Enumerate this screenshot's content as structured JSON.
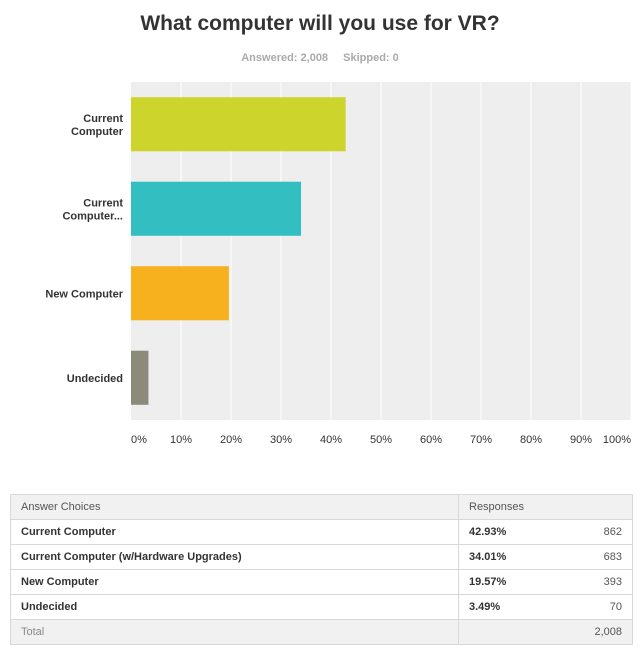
{
  "title": "What computer will you use for VR?",
  "answered": "Answered: 2,008",
  "skipped": "Skipped: 0",
  "colors": {
    "plot_background": "#eeeeee",
    "gridline": "#ffffff",
    "bars": [
      "#cdd42b",
      "#33bfc2",
      "#f7b11e",
      "#8c8b7a"
    ]
  },
  "chart_data": {
    "type": "bar",
    "orientation": "horizontal",
    "categories": [
      "Current Computer",
      "Current Computer...",
      "New Computer",
      "Undecided"
    ],
    "values": [
      42.93,
      34.01,
      19.57,
      3.49
    ],
    "xlim": [
      0,
      100
    ],
    "x_ticks": [
      "0%",
      "10%",
      "20%",
      "30%",
      "40%",
      "50%",
      "60%",
      "70%",
      "80%",
      "90%",
      "100%"
    ],
    "grid": true,
    "legend": "none"
  },
  "table": {
    "header": {
      "choice": "Answer Choices",
      "responses": "Responses"
    },
    "rows": [
      {
        "choice": "Current Computer",
        "percent": "42.93%",
        "count": "862"
      },
      {
        "choice": "Current Computer (w/Hardware Upgrades)",
        "percent": "34.01%",
        "count": "683"
      },
      {
        "choice": "New Computer",
        "percent": "19.57%",
        "count": "393"
      },
      {
        "choice": "Undecided",
        "percent": "3.49%",
        "count": "70"
      }
    ],
    "footer": {
      "label": "Total",
      "total": "2,008"
    }
  }
}
